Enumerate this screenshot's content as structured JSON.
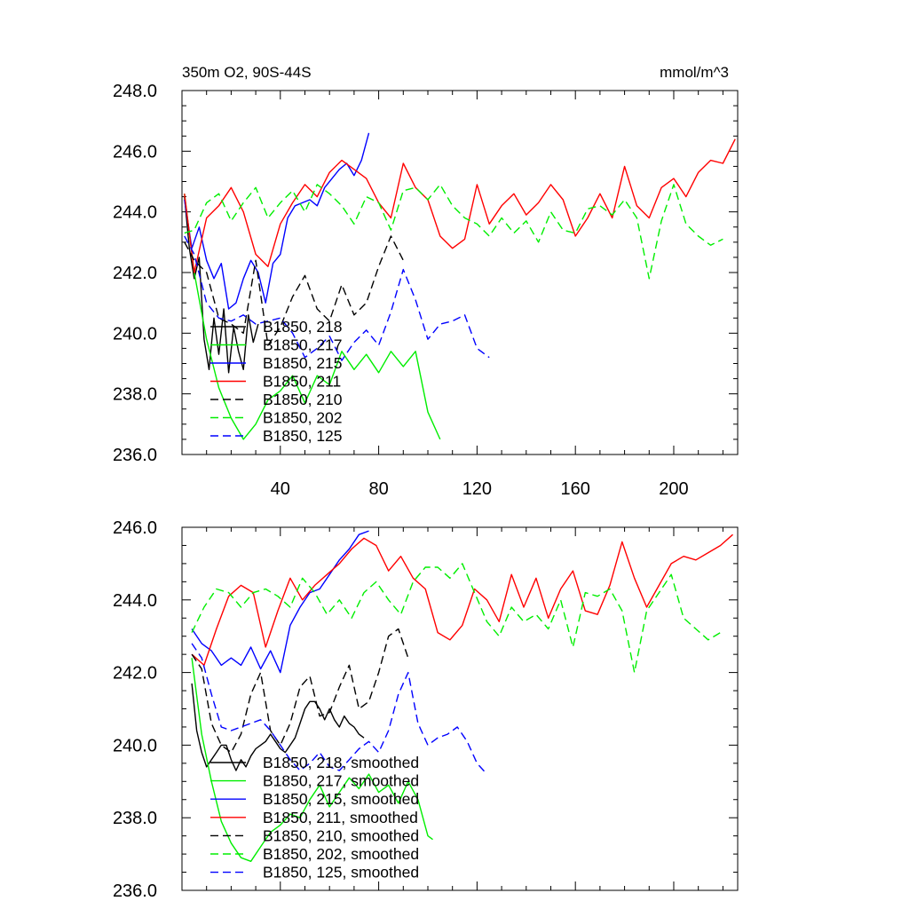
{
  "chart_data": [
    {
      "type": "line",
      "title": "350m O2, 90S-44S",
      "units": "mmol/m^3",
      "xlim": [
        0,
        226
      ],
      "ylim": [
        236,
        248
      ],
      "xticks": [
        40,
        80,
        120,
        160,
        200
      ],
      "xtick_labels": [
        "40",
        "80",
        "120",
        "160",
        "200"
      ],
      "yticks": [
        236,
        238,
        240,
        242,
        244,
        246,
        248
      ],
      "ytick_labels": [
        "236.0",
        "238.0",
        "240.0",
        "242.0",
        "244.0",
        "246.0",
        "248.0"
      ],
      "grid": false,
      "legend_position": "lower-left",
      "series": [
        {
          "name": "B1850, 218",
          "color": "#000000",
          "dash": "solid",
          "x": [
            1,
            3,
            5,
            7,
            9,
            11,
            13,
            15,
            17,
            19,
            21,
            23,
            25,
            27,
            29,
            31
          ],
          "y": [
            244.5,
            242.8,
            241.8,
            242.5,
            239.8,
            238.8,
            240.5,
            239.3,
            240.8,
            238.7,
            240.2,
            239.4,
            238.8,
            240.6,
            239.7,
            240.3
          ]
        },
        {
          "name": "B1850, 217",
          "color": "#00ee00",
          "dash": "solid",
          "x": [
            1,
            5,
            10,
            15,
            20,
            25,
            30,
            35,
            40,
            45,
            50,
            55,
            60,
            65,
            70,
            75,
            80,
            85,
            90,
            95,
            100,
            105
          ],
          "y": [
            244.6,
            242.0,
            239.8,
            238.2,
            237.2,
            236.5,
            237.0,
            237.8,
            238.1,
            238.6,
            237.7,
            238.6,
            238.3,
            239.4,
            238.8,
            239.3,
            238.7,
            239.4,
            238.9,
            239.4,
            237.4,
            236.5
          ]
        },
        {
          "name": "B1850, 215",
          "color": "#0000ff",
          "dash": "solid",
          "x": [
            1,
            4,
            7,
            10,
            13,
            16,
            19,
            22,
            25,
            28,
            31,
            34,
            37,
            40,
            43,
            46,
            49,
            52,
            55,
            58,
            61,
            64,
            67,
            70,
            73,
            76
          ],
          "y": [
            244.4,
            242.8,
            243.5,
            242.4,
            241.8,
            242.3,
            240.8,
            241.0,
            241.8,
            242.4,
            242.0,
            241.0,
            242.3,
            242.6,
            243.8,
            244.2,
            244.3,
            244.4,
            244.2,
            244.8,
            245.1,
            245.4,
            245.6,
            245.2,
            245.7,
            246.6
          ]
        },
        {
          "name": "B1850, 211",
          "color": "#ff0000",
          "dash": "solid",
          "x": [
            1,
            5,
            10,
            15,
            20,
            25,
            30,
            35,
            40,
            45,
            50,
            55,
            60,
            65,
            70,
            75,
            80,
            85,
            90,
            95,
            100,
            105,
            110,
            115,
            120,
            125,
            130,
            135,
            140,
            145,
            150,
            155,
            160,
            165,
            170,
            175,
            180,
            185,
            190,
            195,
            200,
            205,
            210,
            215,
            220,
            225
          ],
          "y": [
            244.6,
            242.0,
            243.8,
            244.2,
            244.8,
            244.0,
            242.6,
            242.2,
            243.6,
            244.3,
            244.9,
            244.5,
            245.3,
            245.7,
            245.4,
            245.1,
            244.3,
            243.8,
            245.6,
            244.8,
            244.4,
            243.2,
            242.8,
            243.1,
            244.9,
            243.6,
            244.2,
            244.6,
            243.9,
            244.3,
            244.9,
            244.4,
            243.2,
            243.8,
            244.6,
            243.8,
            245.5,
            244.2,
            243.8,
            244.8,
            245.1,
            244.5,
            245.3,
            245.7,
            245.6,
            246.4
          ]
        },
        {
          "name": "B1850, 210",
          "color": "#000000",
          "dash": "dashed",
          "x": [
            1,
            5,
            10,
            15,
            20,
            25,
            30,
            35,
            40,
            45,
            50,
            55,
            60,
            65,
            70,
            75,
            80,
            85,
            90
          ],
          "y": [
            243.0,
            242.4,
            242.0,
            240.5,
            240.3,
            240.0,
            242.4,
            239.6,
            240.2,
            241.2,
            241.9,
            240.8,
            240.4,
            241.6,
            240.6,
            241.0,
            242.2,
            243.2,
            242.4
          ]
        },
        {
          "name": "B1850, 202",
          "color": "#00ee00",
          "dash": "dashed",
          "x": [
            1,
            5,
            10,
            15,
            20,
            25,
            30,
            35,
            40,
            45,
            50,
            55,
            60,
            65,
            70,
            75,
            80,
            85,
            90,
            95,
            100,
            105,
            110,
            115,
            120,
            125,
            130,
            135,
            140,
            145,
            150,
            155,
            160,
            165,
            170,
            175,
            180,
            185,
            190,
            195,
            200,
            205,
            210,
            215,
            220
          ],
          "y": [
            243.3,
            243.4,
            244.3,
            244.6,
            243.7,
            244.3,
            244.8,
            243.8,
            244.3,
            244.7,
            244.0,
            244.9,
            244.6,
            244.2,
            243.6,
            244.5,
            244.3,
            243.4,
            244.7,
            244.8,
            244.4,
            244.9,
            244.2,
            243.8,
            243.6,
            243.2,
            243.8,
            243.3,
            243.7,
            243.0,
            244.0,
            243.4,
            243.3,
            244.1,
            244.2,
            243.9,
            244.4,
            243.8,
            241.8,
            243.7,
            244.9,
            243.6,
            243.2,
            242.9,
            243.1
          ]
        },
        {
          "name": "B1850, 125",
          "color": "#0000ff",
          "dash": "dashed",
          "x": [
            1,
            5,
            10,
            15,
            20,
            25,
            30,
            35,
            40,
            45,
            50,
            55,
            60,
            65,
            70,
            75,
            80,
            85,
            90,
            95,
            100,
            105,
            110,
            115,
            120,
            125
          ],
          "y": [
            243.2,
            242.6,
            241.0,
            240.5,
            240.4,
            240.6,
            240.3,
            240.4,
            240.5,
            240.0,
            239.2,
            239.5,
            239.9,
            239.1,
            239.7,
            240.1,
            239.6,
            240.7,
            242.1,
            241.1,
            239.8,
            240.3,
            240.4,
            240.6,
            239.5,
            239.2
          ]
        }
      ]
    },
    {
      "type": "line",
      "xlim": [
        0,
        226
      ],
      "ylim": [
        236,
        246
      ],
      "xticks": [
        40,
        80,
        120,
        160,
        200
      ],
      "yticks": [
        236,
        238,
        240,
        242,
        244,
        246
      ],
      "ytick_labels": [
        "236.0",
        "238.0",
        "240.0",
        "242.0",
        "244.0",
        "246.0"
      ],
      "grid": false,
      "legend_position": "lower-left",
      "series": [
        {
          "name": "B1850, 218, smoothed",
          "color": "#000000",
          "dash": "solid",
          "x": [
            4,
            6,
            8,
            10,
            12,
            14,
            16,
            18,
            20,
            22,
            24,
            26,
            28,
            30,
            32,
            34,
            36,
            38,
            40,
            42,
            44,
            46,
            48,
            50,
            52,
            54,
            56,
            58,
            60,
            62,
            64,
            66,
            68,
            70,
            72,
            74
          ],
          "y": [
            241.7,
            240.4,
            239.8,
            239.4,
            239.6,
            239.8,
            240.0,
            240.0,
            239.6,
            239.3,
            239.6,
            239.4,
            239.7,
            239.9,
            240.0,
            240.1,
            240.3,
            240.1,
            239.9,
            239.8,
            240.0,
            240.2,
            240.6,
            241.0,
            241.2,
            241.2,
            241.0,
            240.7,
            241.0,
            240.7,
            240.5,
            240.8,
            240.6,
            240.5,
            240.3,
            240.2
          ]
        },
        {
          "name": "B1850, 217, smoothed",
          "color": "#00ee00",
          "dash": "solid",
          "x": [
            4,
            8,
            12,
            16,
            20,
            24,
            28,
            32,
            36,
            40,
            44,
            48,
            52,
            56,
            60,
            64,
            68,
            72,
            76,
            80,
            84,
            88,
            92,
            96,
            100,
            102
          ],
          "y": [
            242.4,
            240.3,
            239.0,
            237.9,
            237.3,
            236.9,
            236.8,
            237.2,
            237.6,
            237.8,
            238.1,
            238.0,
            238.5,
            238.9,
            238.3,
            238.7,
            239.1,
            238.8,
            239.2,
            238.7,
            238.9,
            238.4,
            239.0,
            238.5,
            237.5,
            237.4
          ]
        },
        {
          "name": "B1850, 215, smoothed",
          "color": "#0000ff",
          "dash": "solid",
          "x": [
            4,
            8,
            12,
            16,
            20,
            24,
            28,
            32,
            36,
            40,
            44,
            48,
            52,
            56,
            60,
            64,
            68,
            72,
            76
          ],
          "y": [
            243.2,
            242.8,
            242.6,
            242.2,
            242.4,
            242.2,
            242.7,
            242.1,
            242.6,
            242.0,
            243.3,
            243.8,
            244.2,
            244.3,
            244.7,
            245.1,
            245.4,
            245.8,
            245.9
          ]
        },
        {
          "name": "B1850, 211, smoothed",
          "color": "#ff0000",
          "dash": "solid",
          "x": [
            4,
            9,
            14,
            19,
            24,
            29,
            34,
            39,
            44,
            49,
            54,
            59,
            64,
            69,
            74,
            79,
            84,
            89,
            94,
            99,
            104,
            109,
            114,
            119,
            124,
            129,
            134,
            139,
            144,
            149,
            154,
            159,
            164,
            169,
            174,
            179,
            184,
            189,
            194,
            199,
            204,
            209,
            214,
            219,
            224
          ],
          "y": [
            242.5,
            242.2,
            243.2,
            244.1,
            244.4,
            244.2,
            242.7,
            243.7,
            244.6,
            244.0,
            244.4,
            244.7,
            245.0,
            245.4,
            245.7,
            245.5,
            244.8,
            245.2,
            244.6,
            244.3,
            243.1,
            242.9,
            243.3,
            244.3,
            244.0,
            243.4,
            244.7,
            243.8,
            244.6,
            243.5,
            244.3,
            244.8,
            243.7,
            243.6,
            244.4,
            245.6,
            244.6,
            243.8,
            244.4,
            245.0,
            245.2,
            245.1,
            245.3,
            245.5,
            245.8
          ]
        },
        {
          "name": "B1850, 210, smoothed",
          "color": "#000000",
          "dash": "dashed",
          "x": [
            4,
            8,
            12,
            16,
            20,
            24,
            28,
            32,
            36,
            40,
            44,
            48,
            52,
            56,
            60,
            64,
            68,
            72,
            76,
            80,
            84,
            88,
            92
          ],
          "y": [
            242.5,
            242.1,
            240.6,
            240.0,
            239.8,
            240.3,
            241.4,
            242.0,
            240.4,
            240.0,
            240.6,
            241.6,
            241.9,
            240.8,
            240.9,
            241.6,
            242.2,
            241.0,
            241.2,
            242.0,
            243.0,
            243.2,
            242.4
          ]
        },
        {
          "name": "B1850, 202, smoothed",
          "color": "#00ee00",
          "dash": "dashed",
          "x": [
            4,
            9,
            14,
            19,
            24,
            29,
            34,
            39,
            44,
            49,
            54,
            59,
            64,
            69,
            74,
            79,
            84,
            89,
            94,
            99,
            104,
            109,
            114,
            119,
            124,
            129,
            134,
            139,
            144,
            149,
            154,
            159,
            164,
            169,
            174,
            179,
            184,
            189,
            194,
            199,
            204,
            209,
            214,
            219
          ],
          "y": [
            243.1,
            243.8,
            244.3,
            244.2,
            243.8,
            244.2,
            244.3,
            244.1,
            243.8,
            244.6,
            244.2,
            243.6,
            244.0,
            243.5,
            244.2,
            244.5,
            244.0,
            243.6,
            244.5,
            244.9,
            244.9,
            244.6,
            245.0,
            244.2,
            243.4,
            243.0,
            243.8,
            243.4,
            243.6,
            243.2,
            244.0,
            242.7,
            244.2,
            244.1,
            244.3,
            243.7,
            242.0,
            243.7,
            244.2,
            244.7,
            243.5,
            243.2,
            242.9,
            243.1
          ]
        },
        {
          "name": "B1850, 125, smoothed",
          "color": "#0000ff",
          "dash": "dashed",
          "x": [
            4,
            8,
            12,
            16,
            20,
            24,
            28,
            32,
            36,
            40,
            44,
            48,
            52,
            56,
            60,
            64,
            68,
            72,
            76,
            80,
            84,
            88,
            92,
            96,
            100,
            104,
            108,
            112,
            116,
            120,
            124
          ],
          "y": [
            242.8,
            242.4,
            241.4,
            240.5,
            240.4,
            240.5,
            240.6,
            240.7,
            240.4,
            240.0,
            239.6,
            239.3,
            239.5,
            239.8,
            239.4,
            239.3,
            239.6,
            239.9,
            240.1,
            239.8,
            240.4,
            241.4,
            242.0,
            240.6,
            240.0,
            240.2,
            240.3,
            240.5,
            240.1,
            239.5,
            239.2
          ]
        }
      ]
    }
  ]
}
